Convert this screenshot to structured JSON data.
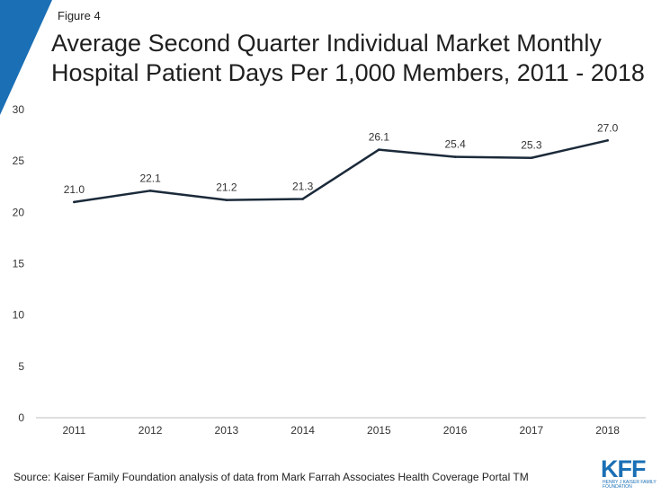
{
  "figure_label": "Figure 4",
  "source": "Source: Kaiser Family Foundation analysis of data from Mark Farrah Associates Health Coverage Portal TM",
  "brand": {
    "logo_text": "KFF",
    "logo_subtext": "HENRY J KAISER FAMILY FOUNDATION",
    "accent_color": "#1a6fb5"
  },
  "chart_data": {
    "type": "line",
    "title": "Average Second Quarter Individual Market Monthly Hospital Patient Days Per 1,000 Members, 2011 - 2018",
    "categories": [
      "2011",
      "2012",
      "2013",
      "2014",
      "2015",
      "2016",
      "2017",
      "2018"
    ],
    "values": [
      21.0,
      22.1,
      21.2,
      21.3,
      26.1,
      25.4,
      25.3,
      27.0
    ],
    "data_labels": [
      "21.0",
      "22.1",
      "21.2",
      "21.3",
      "26.1",
      "25.4",
      "25.3",
      "27.0"
    ],
    "ylim": [
      0,
      30
    ],
    "yticks": [
      "0",
      "5",
      "10",
      "15",
      "20",
      "25",
      "30"
    ],
    "xlabel": "",
    "ylabel": "",
    "grid": false,
    "line_color": "#1b2a3a"
  }
}
